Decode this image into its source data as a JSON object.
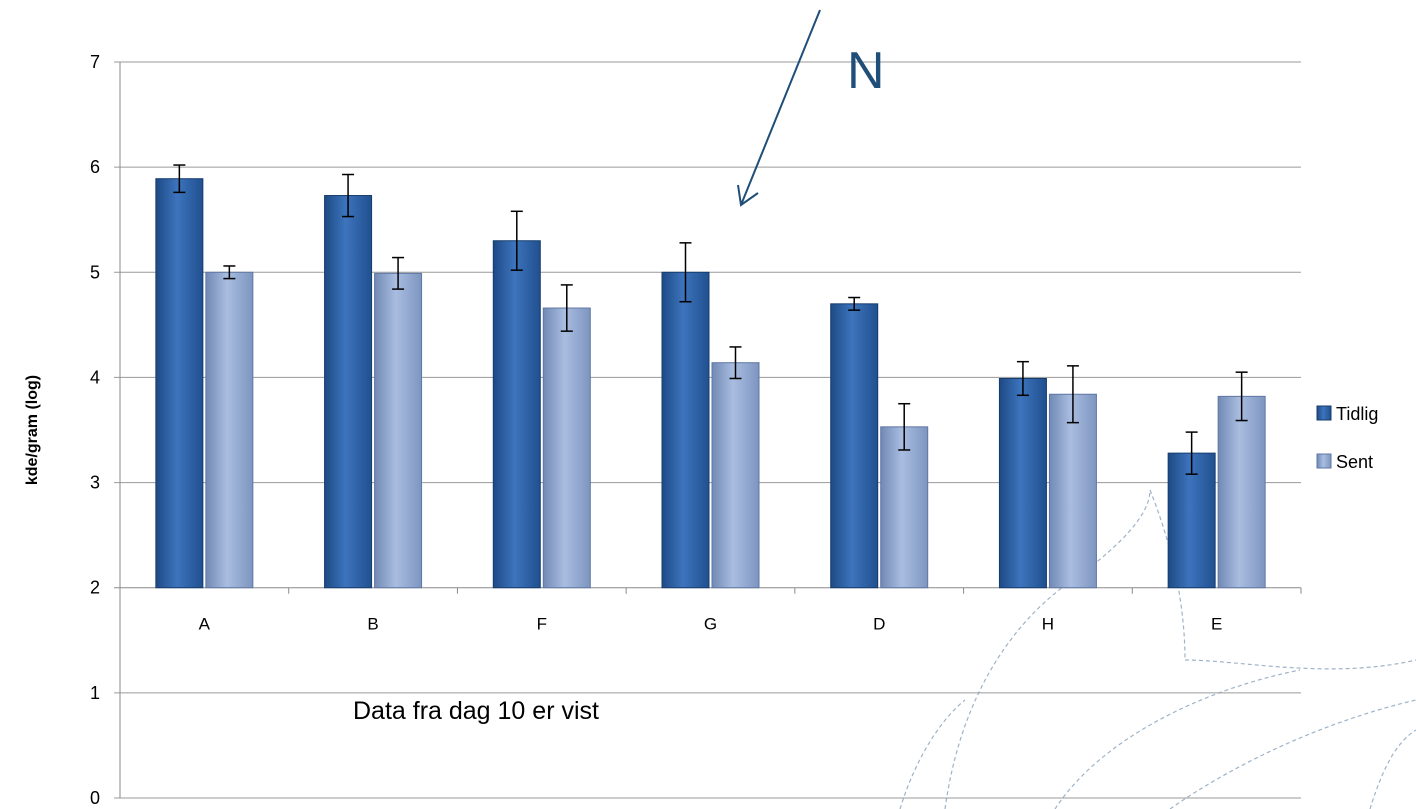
{
  "chart_data": {
    "type": "bar",
    "ylabel": "kde/gram (log)",
    "xlabel": "",
    "ylim": [
      0,
      7
    ],
    "yticks": [
      0,
      1,
      2,
      3,
      4,
      5,
      6,
      7
    ],
    "grid": true,
    "legend_position": "right",
    "categories": [
      "A",
      "B",
      "F",
      "G",
      "D",
      "H",
      "E"
    ],
    "series": [
      {
        "name": "Tidlig",
        "color": "#2e62a6",
        "values": [
          5.89,
          5.73,
          5.3,
          5.0,
          4.7,
          3.99,
          3.28
        ],
        "error": [
          0.13,
          0.2,
          0.28,
          0.28,
          0.06,
          0.16,
          0.2
        ]
      },
      {
        "name": "Sent",
        "color": "#8fa7cf",
        "values": [
          5.0,
          4.99,
          4.66,
          4.14,
          3.53,
          3.84,
          3.82
        ],
        "error": [
          0.06,
          0.15,
          0.22,
          0.15,
          0.22,
          0.27,
          0.23
        ]
      }
    ],
    "annotations": {
      "note": "Data fra dag 10 er vist",
      "marker": "N"
    }
  }
}
